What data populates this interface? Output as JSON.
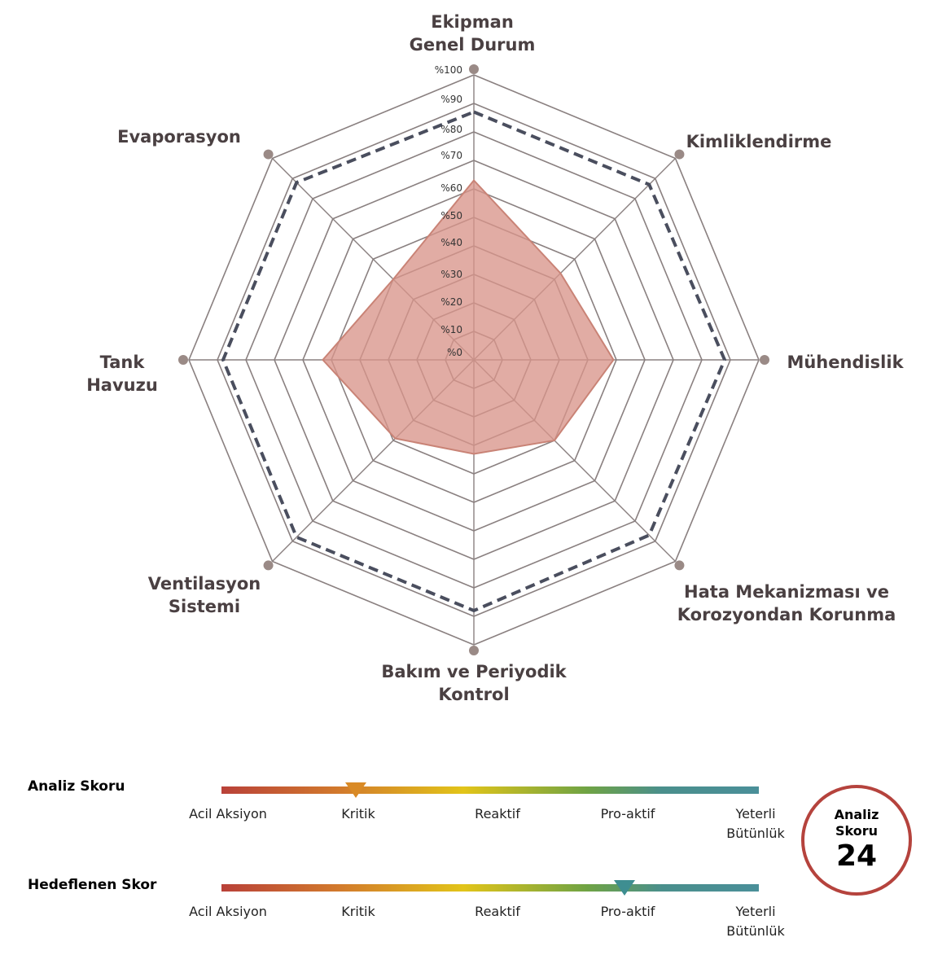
{
  "chart_data": {
    "type": "radar",
    "axes": [
      [
        "Ekipman",
        "Genel Durum"
      ],
      [
        "Kimliklendirme"
      ],
      [
        "Mühendislik"
      ],
      [
        "Hata Mekanizması ve",
        "Korozyondan Korunma"
      ],
      [
        "Bakım ve Periyodik",
        "Kontrol"
      ],
      [
        "Ventilasyon",
        "Sistemi"
      ],
      [
        "Tank",
        "Havuzu"
      ],
      [
        "Evaporasyon"
      ]
    ],
    "tick_labels": [
      "%0",
      "%10",
      "%20",
      "%30",
      "%40",
      "%50",
      "%60",
      "%70",
      "%80",
      "%90",
      "%100"
    ],
    "range": [
      0,
      100
    ],
    "series": [
      {
        "values": [
          63,
          43,
          49,
          40,
          33,
          39,
          53,
          40
        ],
        "style": "filled",
        "color": "#d9958a"
      },
      {
        "values": [
          87,
          87,
          88,
          87,
          88,
          88,
          88,
          88
        ],
        "style": "dashed",
        "color": "#4a4e5e"
      }
    ]
  },
  "scales": [
    {
      "title": "Analiz Skoru",
      "labels": [
        [
          "Acil Aksiyon"
        ],
        [
          "Kritik"
        ],
        [
          "Reaktif"
        ],
        [
          "Pro-aktif"
        ],
        [
          "Yeterli",
          "Bütünlük"
        ]
      ],
      "marker_position": 0.25,
      "marker_color": "#d98a26"
    },
    {
      "title": "Hedeflenen Skor",
      "labels": [
        [
          "Acil Aksiyon"
        ],
        [
          "Kritik"
        ],
        [
          "Reaktif"
        ],
        [
          "Pro-aktif"
        ],
        [
          "Yeterli",
          "Bütünlük"
        ]
      ],
      "marker_position": 0.75,
      "marker_color": "#3e8e91"
    }
  ],
  "score_badge": {
    "title_line1": "Analiz",
    "title_line2": "Skoru",
    "value": "24"
  }
}
